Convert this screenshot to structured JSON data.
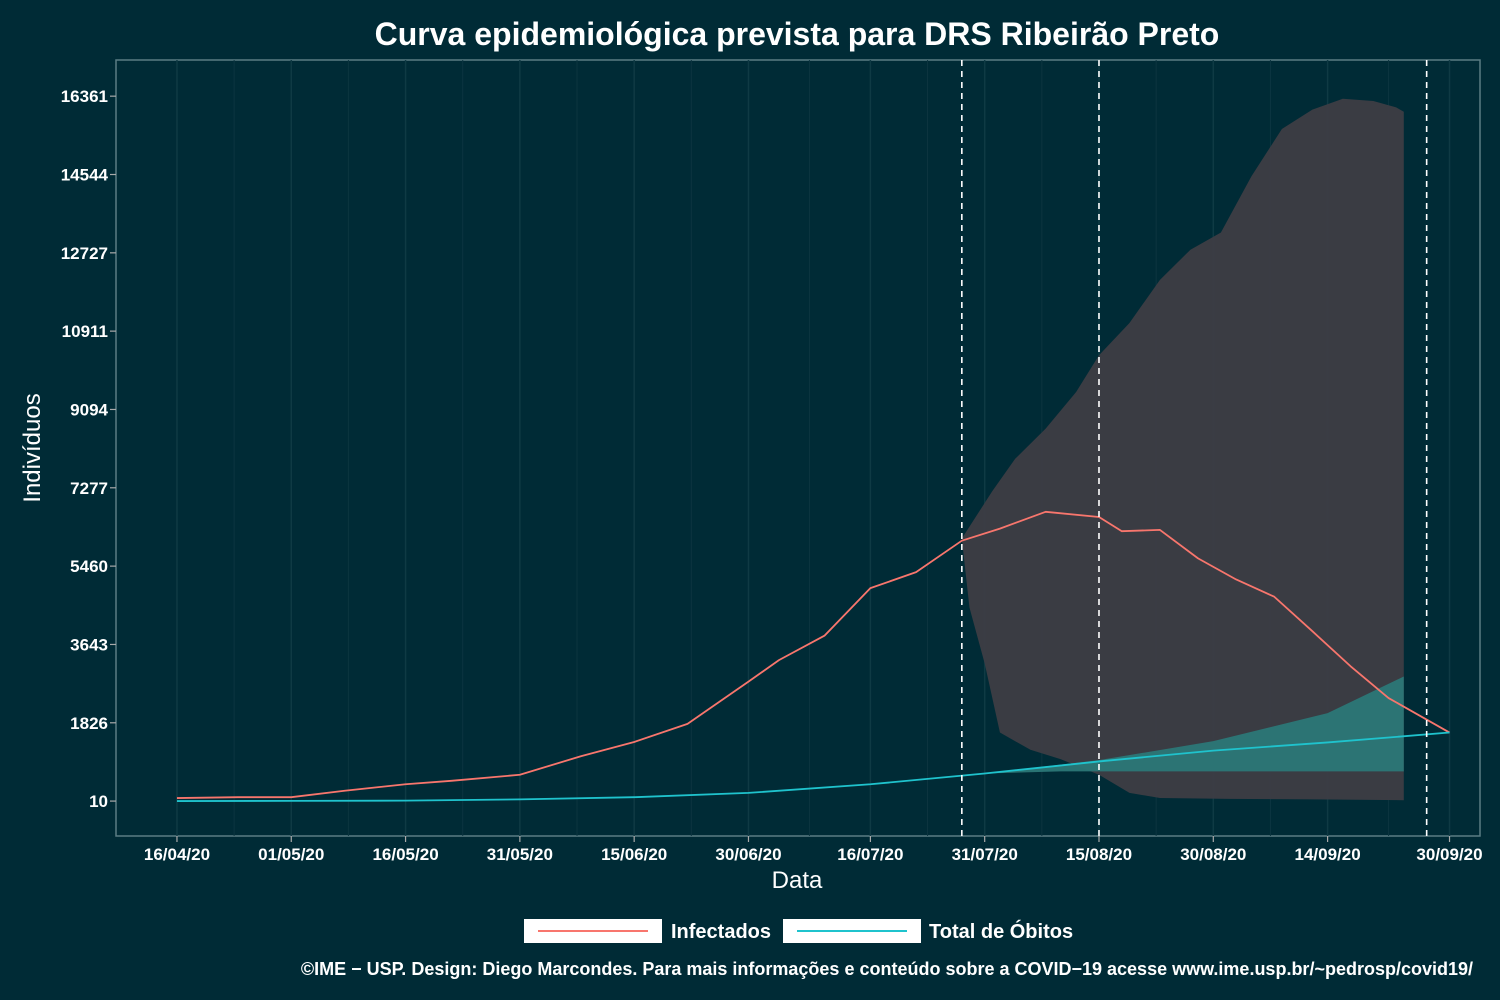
{
  "chart_data": {
    "type": "line",
    "title": "Curva epidemiológica prevista para DRS Ribeirão Preto",
    "xlabel": "Data",
    "ylabel": "Indivíduos",
    "x_ticks": [
      "16/04/20",
      "01/05/20",
      "16/05/20",
      "31/05/20",
      "15/06/20",
      "30/06/20",
      "16/07/20",
      "31/07/20",
      "15/08/20",
      "30/08/20",
      "14/09/20",
      "30/09/20"
    ],
    "y_ticks": [
      10,
      1826,
      3643,
      5460,
      7277,
      9094,
      10911,
      12727,
      14544,
      16361
    ],
    "xlim": [
      "2020-04-08",
      "2020-10-04"
    ],
    "ylim": [
      -800,
      17200
    ],
    "vlines": [
      "2020-07-28",
      "2020-08-15",
      "2020-09-27"
    ],
    "grid": true,
    "legend_position": "bottom",
    "series": [
      {
        "name": "Infectados",
        "color": "#f8766d",
        "points": [
          [
            "2020-04-16",
            80
          ],
          [
            "2020-04-24",
            100
          ],
          [
            "2020-05-01",
            100
          ],
          [
            "2020-05-08",
            250
          ],
          [
            "2020-05-16",
            400
          ],
          [
            "2020-05-22",
            480
          ],
          [
            "2020-05-31",
            620
          ],
          [
            "2020-06-08",
            1050
          ],
          [
            "2020-06-15",
            1380
          ],
          [
            "2020-06-22",
            1800
          ],
          [
            "2020-06-30",
            2780
          ],
          [
            "2020-07-04",
            3280
          ],
          [
            "2020-07-10",
            3850
          ],
          [
            "2020-07-16",
            4950
          ],
          [
            "2020-07-22",
            5320
          ],
          [
            "2020-07-28",
            6050
          ],
          [
            "2020-08-02",
            6330
          ],
          [
            "2020-08-08",
            6720
          ],
          [
            "2020-08-15",
            6600
          ],
          [
            "2020-08-18",
            6270
          ],
          [
            "2020-08-23",
            6300
          ],
          [
            "2020-08-28",
            5640
          ],
          [
            "2020-09-02",
            5150
          ],
          [
            "2020-09-07",
            4750
          ],
          [
            "2020-09-12",
            3950
          ],
          [
            "2020-09-17",
            3140
          ],
          [
            "2020-09-22",
            2400
          ],
          [
            "2020-09-30",
            1600
          ]
        ]
      },
      {
        "name": "Total de Óbitos",
        "color": "#1fc3cd",
        "points": [
          [
            "2020-04-16",
            10
          ],
          [
            "2020-05-01",
            15
          ],
          [
            "2020-05-16",
            20
          ],
          [
            "2020-05-31",
            50
          ],
          [
            "2020-06-15",
            100
          ],
          [
            "2020-06-30",
            200
          ],
          [
            "2020-07-16",
            400
          ],
          [
            "2020-07-31",
            650
          ],
          [
            "2020-08-15",
            930
          ],
          [
            "2020-08-30",
            1180
          ],
          [
            "2020-09-14",
            1370
          ],
          [
            "2020-09-30",
            1600
          ]
        ]
      }
    ],
    "bands": [
      {
        "series": "Infectados",
        "color": "#3d3d45",
        "upper": [
          [
            "2020-07-28",
            6100
          ],
          [
            "2020-08-01",
            7200
          ],
          [
            "2020-08-04",
            7950
          ],
          [
            "2020-08-08",
            8650
          ],
          [
            "2020-08-12",
            9500
          ],
          [
            "2020-08-15",
            10350
          ],
          [
            "2020-08-19",
            11100
          ],
          [
            "2020-08-23",
            12100
          ],
          [
            "2020-08-27",
            12800
          ],
          [
            "2020-08-31",
            13200
          ],
          [
            "2020-09-04",
            14500
          ],
          [
            "2020-09-08",
            15600
          ],
          [
            "2020-09-12",
            16050
          ],
          [
            "2020-09-16",
            16300
          ],
          [
            "2020-09-20",
            16250
          ],
          [
            "2020-09-23",
            16100
          ],
          [
            "2020-09-24",
            16000
          ]
        ],
        "lower": [
          [
            "2020-07-28",
            6100
          ],
          [
            "2020-07-29",
            4500
          ],
          [
            "2020-07-31",
            3200
          ],
          [
            "2020-08-02",
            1600
          ],
          [
            "2020-08-06",
            1200
          ],
          [
            "2020-08-10",
            980
          ],
          [
            "2020-08-15",
            620
          ],
          [
            "2020-08-19",
            200
          ],
          [
            "2020-08-23",
            80
          ],
          [
            "2020-09-01",
            60
          ],
          [
            "2020-09-12",
            50
          ],
          [
            "2020-09-24",
            30
          ]
        ]
      },
      {
        "series": "Total de Óbitos",
        "color": "#2b7777",
        "upper": [
          [
            "2020-07-31",
            650
          ],
          [
            "2020-08-15",
            960
          ],
          [
            "2020-08-30",
            1400
          ],
          [
            "2020-09-14",
            2050
          ],
          [
            "2020-09-24",
            2900
          ]
        ],
        "lower": [
          [
            "2020-07-31",
            650
          ],
          [
            "2020-08-10",
            700
          ],
          [
            "2020-09-24",
            700
          ]
        ]
      }
    ]
  },
  "caption": "©IME − USP. Design: Diego Marcondes. Para mais informações e conteúdo sobre a COVID−19 acesse www.ime.usp.br/~pedrosp/covid19/"
}
